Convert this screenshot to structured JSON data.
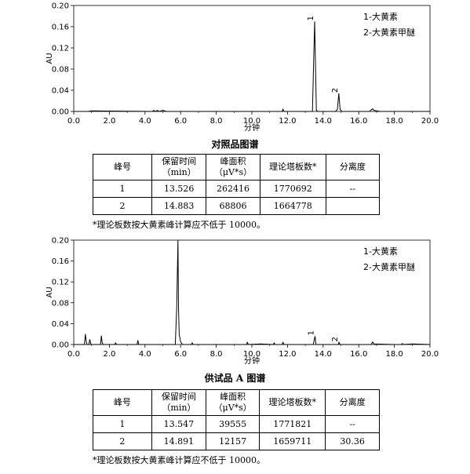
{
  "chart_data": [
    {
      "type": "line",
      "xlabel": "分钟",
      "ylabel": "AU",
      "xlim": [
        0,
        20
      ],
      "ylim": [
        0,
        0.2
      ],
      "xticks": [
        "0.0",
        "2.0",
        "4.0",
        "6.0",
        "8.0",
        "10.0",
        "12.0",
        "14.0",
        "16.0",
        "18.0",
        "20.0"
      ],
      "yticks": [
        "0.00",
        "0.04",
        "0.08",
        "0.12",
        "0.16",
        "0.20"
      ],
      "legend": [
        "1-大黄素",
        "2-大黄素甲醚"
      ],
      "peak_labels": [
        {
          "text": "1",
          "x": 13.526,
          "y": 0.17
        },
        {
          "text": "2",
          "x": 14.883,
          "y": 0.034
        }
      ],
      "x": [
        0,
        0.8,
        1.0,
        4.4,
        4.5,
        4.6,
        4.7,
        4.8,
        5.0,
        5.2,
        5.4,
        11.7,
        11.75,
        11.8,
        13.4,
        13.48,
        13.526,
        13.56,
        13.62,
        13.7,
        14.7,
        14.8,
        14.883,
        14.95,
        15.05,
        16.6,
        16.78,
        16.85,
        17.0,
        17.2,
        20.0
      ],
      "y": [
        0,
        0,
        0.001,
        0,
        0.002,
        0,
        0.002,
        0,
        0.002,
        0,
        0,
        0,
        0.004,
        0,
        0,
        0.11,
        0.17,
        0.11,
        0.002,
        0,
        0,
        0.004,
        0.034,
        0.004,
        0,
        0,
        0.005,
        0.002,
        0.001,
        0,
        0
      ]
    },
    {
      "type": "line",
      "xlabel": "分钟",
      "ylabel": "AU",
      "xlim": [
        0,
        20
      ],
      "ylim": [
        0,
        0.2
      ],
      "xticks": [
        "0.0",
        "2.0",
        "4.0",
        "6.0",
        "8.0",
        "10.0",
        "12.0",
        "14.0",
        "16.0",
        "18.0",
        "20.0"
      ],
      "yticks": [
        "0.00",
        "0.04",
        "0.08",
        "0.12",
        "0.16",
        "0.20"
      ],
      "legend": [
        "1-大黄素",
        "2-大黄素甲醚"
      ],
      "peak_labels": [
        {
          "text": "1",
          "x": 13.547,
          "y": 0.016
        },
        {
          "text": "2",
          "x": 14.891,
          "y": 0.004
        }
      ],
      "x": [
        0,
        0.6,
        0.65,
        0.7,
        0.75,
        0.85,
        0.9,
        0.95,
        1.0,
        1.5,
        1.55,
        1.6,
        1.65,
        2.3,
        2.35,
        2.4,
        3.55,
        3.6,
        3.65,
        4.0,
        5.7,
        5.78,
        5.85,
        5.88,
        5.92,
        6.0,
        6.1,
        6.6,
        6.65,
        6.7,
        8.0,
        9.7,
        9.75,
        9.8,
        10.5,
        11.2,
        11.25,
        11.3,
        11.7,
        11.75,
        11.8,
        13.45,
        13.547,
        13.6,
        14.85,
        14.891,
        14.95,
        16.7,
        16.78,
        16.85,
        18.0,
        18.4,
        18.45,
        18.5,
        19.0,
        20.0
      ],
      "y": [
        0,
        0,
        0.02,
        0.006,
        0,
        0,
        0.01,
        0.002,
        0,
        0,
        0.017,
        0.003,
        0,
        0,
        0.003,
        0,
        0,
        0.008,
        0,
        0,
        0,
        0.07,
        0.2,
        0.07,
        0.02,
        0.005,
        0,
        0,
        0.003,
        0,
        0,
        0,
        0.004,
        0,
        0.001,
        0,
        0.003,
        0,
        0,
        0.004,
        0,
        0,
        0.016,
        0,
        0,
        0.004,
        0,
        0,
        0.005,
        0.001,
        0,
        0,
        0.002,
        0,
        0.001,
        0
      ]
    }
  ],
  "caption1": "对照品图谱",
  "caption2": "供试品 A 图谱",
  "tables": {
    "headers": {
      "col1": "峰号",
      "col2a": "保留时间",
      "col2b": "（min）",
      "col3a": "峰面积",
      "col3b": "（μV*s）",
      "col4": "理论塔板数*",
      "col5": "分离度"
    },
    "ref_rows": [
      {
        "peak": "1",
        "rt": "13.526",
        "area": "262416",
        "plates": "1770692",
        "res": "--"
      },
      {
        "peak": "2",
        "rt": "14.883",
        "area": "68806",
        "plates": "1664778",
        "res": ""
      }
    ],
    "sample_rows": [
      {
        "peak": "1",
        "rt": "13.547",
        "area": "39555",
        "plates": "1771821",
        "res": "--"
      },
      {
        "peak": "2",
        "rt": "14.891",
        "area": "12157",
        "plates": "1659711",
        "res": "30.36"
      }
    ],
    "note1": "*理论板数按大黄素峰计算应不低于 10000。",
    "note2": "*理论板数按大黄素峰计算应不低于 10000。"
  },
  "colors": {
    "line": "#000000",
    "axis": "#000000"
  }
}
